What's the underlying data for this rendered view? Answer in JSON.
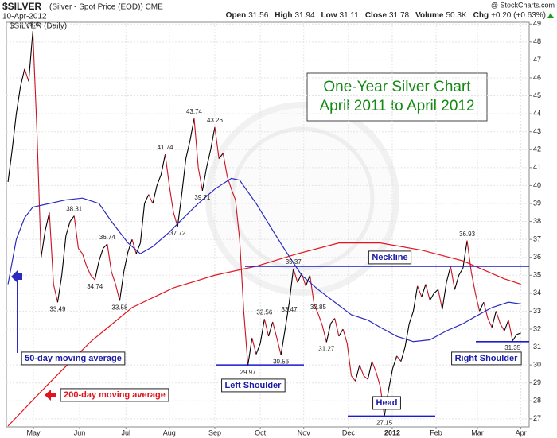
{
  "chart_data": {
    "type": "line",
    "symbol": "$SILVER",
    "description": "(Silver - Spot Price (EOD)) CME",
    "date": "10-Apr-2012",
    "credit": "@ StockCharts.com",
    "stats": [
      {
        "label": "Open",
        "value": 31.56
      },
      {
        "label": "High",
        "value": 31.94
      },
      {
        "label": "Low",
        "value": 31.11
      },
      {
        "label": "Close",
        "value": 31.78
      },
      {
        "label": "Volume",
        "value": "50.3K"
      },
      {
        "label": "Chg",
        "value": "+0.20 (+0.63%)"
      }
    ],
    "title": [
      "One-Year Silver Chart",
      "April 2011 to April 2012"
    ],
    "xlim": [
      -0.4,
      126
    ],
    "xticks": [
      {
        "value": 6.15,
        "label": "May"
      },
      {
        "value": 17.3,
        "label": "Jun"
      },
      {
        "value": 28.5,
        "label": "Jul"
      },
      {
        "value": 39,
        "label": "Aug"
      },
      {
        "value": 50,
        "label": "Sep"
      },
      {
        "value": 61,
        "label": "Oct"
      },
      {
        "value": 71.5,
        "label": "Nov"
      },
      {
        "value": 82.3,
        "label": "Dec"
      },
      {
        "value": 92.9,
        "label": "2012"
      },
      {
        "value": 103.5,
        "label": "Feb"
      },
      {
        "value": 113.5,
        "label": "Mar"
      },
      {
        "value": 124,
        "label": "Apr"
      }
    ],
    "ylim": [
      26.55,
      49.1
    ],
    "yticks": [
      27,
      28,
      29,
      30,
      31,
      32,
      33,
      34,
      35,
      36,
      37,
      38,
      39,
      40,
      41,
      42,
      43,
      44,
      45,
      46,
      47,
      48,
      49
    ],
    "grid": true,
    "series": [
      {
        "name": "$SILVER (Daily)",
        "color": "#000000",
        "down_color": "#cc1122",
        "values": [
          40.2,
          42,
          44,
          45.5,
          46.5,
          45.8,
          48.6,
          43,
          36,
          37.5,
          38.5,
          34.5,
          33.49,
          35,
          37.2,
          38,
          38.31,
          36.5,
          36.2,
          35.5,
          35,
          34.74,
          35.8,
          36.5,
          36.74,
          35.2,
          34.5,
          33.58,
          35.2,
          36.3,
          37,
          36.2,
          36.8,
          39,
          39.5,
          39,
          40,
          40.6,
          41.74,
          40,
          38.5,
          37.72,
          39.5,
          41.5,
          42.5,
          43.74,
          41,
          39.71,
          41,
          42,
          43.26,
          41.5,
          41.8,
          40.5,
          39.8,
          39.2,
          37,
          33,
          29.97,
          31.5,
          30.6,
          31.2,
          32.56,
          31.6,
          32.4,
          31.5,
          30.56,
          32,
          33.47,
          35.37,
          34.6,
          35.1,
          34.4,
          35,
          33.4,
          32.85,
          32.2,
          31.27,
          32.3,
          32.6,
          31.6,
          32,
          31.2,
          29.4,
          29.1,
          30,
          29.4,
          29.2,
          30.2,
          29.6,
          28.8,
          27.15,
          28.6,
          29.8,
          30.5,
          30.2,
          31,
          32.3,
          33,
          34.4,
          33.8,
          34.5,
          33.6,
          34,
          34.2,
          33.1,
          34.6,
          35.5,
          34.2,
          35,
          35.4,
          36.93,
          35.2,
          34,
          33,
          33.5,
          32.6,
          32.1,
          33,
          32.3,
          31.9,
          32.5,
          31.35,
          31.7,
          31.78
        ],
        "labels_above": [
          6,
          16,
          24,
          38,
          45,
          50,
          62,
          69,
          75,
          111
        ],
        "labels_below": [
          12,
          21,
          27,
          41,
          47,
          58,
          66,
          68,
          77,
          91,
          122
        ]
      },
      {
        "name": "50-day moving average",
        "color": "#2b2bbf",
        "x": [
          0,
          2,
          4,
          6,
          10,
          14,
          18,
          22,
          25,
          29,
          32,
          35,
          39,
          42,
          46,
          50,
          54,
          56,
          60,
          64,
          67,
          71,
          75,
          79,
          83,
          87,
          90,
          94,
          98,
          102,
          106,
          110,
          113,
          117,
          121,
          124
        ],
        "values": [
          34.5,
          37,
          38.2,
          38.8,
          39.0,
          39.2,
          39.3,
          39.0,
          38.0,
          36.8,
          36.2,
          36.6,
          37.4,
          38.1,
          39.0,
          39.8,
          40.4,
          40.3,
          39,
          37.5,
          36.4,
          35,
          34.2,
          33.5,
          32.8,
          32.5,
          32.1,
          31.6,
          31.3,
          31.4,
          31.9,
          32.3,
          32.7,
          33.2,
          33.5,
          33.4
        ]
      },
      {
        "name": "200-day moving average",
        "color": "#e0141e",
        "x": [
          0,
          10,
          20,
          30,
          40,
          50,
          60,
          70,
          80,
          90,
          100,
          110,
          120,
          124
        ],
        "values": [
          26.6,
          29,
          31.3,
          33.2,
          34.3,
          35,
          35.5,
          36.2,
          36.8,
          36.8,
          36.4,
          35.8,
          34.8,
          34.5
        ]
      }
    ],
    "annotations": [
      {
        "text": "Neckline",
        "level": 35.5
      },
      {
        "text": "Left Shoulder",
        "level": 30
      },
      {
        "text": "Head",
        "level": 27.15
      },
      {
        "text": "Right Shoulder",
        "level": 31.3
      }
    ]
  }
}
